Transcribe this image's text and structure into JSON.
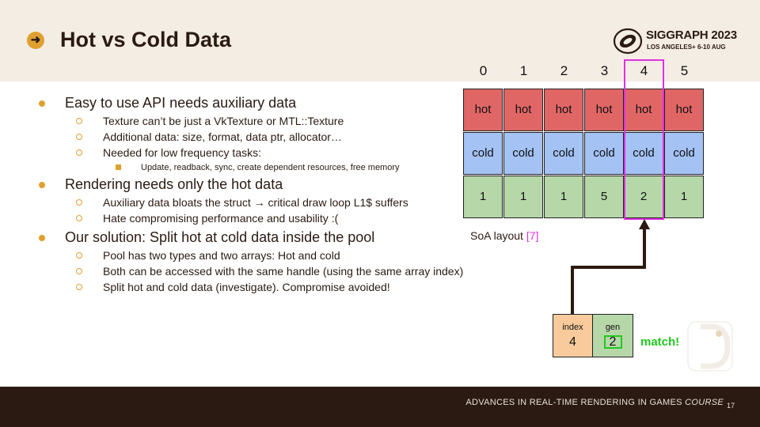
{
  "slide": {
    "title": "Hot vs Cold Data",
    "logo": {
      "name": "SIGGRAPH 2023",
      "subtitle": "LOS ANGELES+ 6-10 AUG"
    },
    "bullets": [
      {
        "level": 1,
        "text": "Easy to use API needs auxiliary data"
      },
      {
        "level": 2,
        "text": "Texture can’t be just a VkTexture or MTL::Texture"
      },
      {
        "level": 2,
        "text": "Additional data: size, format, data ptr, allocator…"
      },
      {
        "level": 2,
        "text": "Needed for low frequency tasks:"
      },
      {
        "level": 3,
        "text": "Update, readback, sync, create dependent resources, free memory"
      },
      {
        "level": 1,
        "text": "Rendering needs only the hot data"
      },
      {
        "level": 2,
        "text": "Auxiliary data bloats the struct → critical draw loop L1$ suffers"
      },
      {
        "level": 2,
        "text": "Hate compromising performance and usability :("
      },
      {
        "level": 1,
        "text": "Our solution: Split hot at cold data inside the pool"
      },
      {
        "level": 2,
        "text": "Pool has two types and two arrays: Hot and cold"
      },
      {
        "level": 2,
        "text": "Both can be accessed with the same handle (using the same array index)"
      },
      {
        "level": 2,
        "text": "Split hot and cold data (investigate). Compromise avoided!"
      }
    ],
    "footer": {
      "text": "ADVANCES IN REAL-TIME RENDERING IN GAMES",
      "course": "COURSE",
      "page": "17"
    }
  },
  "diagram": {
    "columns": [
      "0",
      "1",
      "2",
      "3",
      "4",
      "5"
    ],
    "hot_row": [
      "hot",
      "hot",
      "hot",
      "hot",
      "hot",
      "hot"
    ],
    "cold_row": [
      "cold",
      "cold",
      "cold",
      "cold",
      "cold",
      "cold"
    ],
    "gen_row": [
      "1",
      "1",
      "1",
      "5",
      "2",
      "1"
    ],
    "highlight_column": 4,
    "caption": "SoA layout",
    "caption_ref": "[7]",
    "handle": {
      "index_label": "index",
      "index_value": "4",
      "gen_label": "gen",
      "gen_value": "2"
    },
    "match_label": "match!"
  },
  "colors": {
    "accent": "#e0a030",
    "hot": "#e06666",
    "cold": "#a4c2f4",
    "gen": "#b6d7a8",
    "index": "#f9cb9c",
    "highlight": "#e030e0",
    "match": "#22c822",
    "footer_bg": "#2a1a12",
    "header_bg": "#f4ede3"
  }
}
